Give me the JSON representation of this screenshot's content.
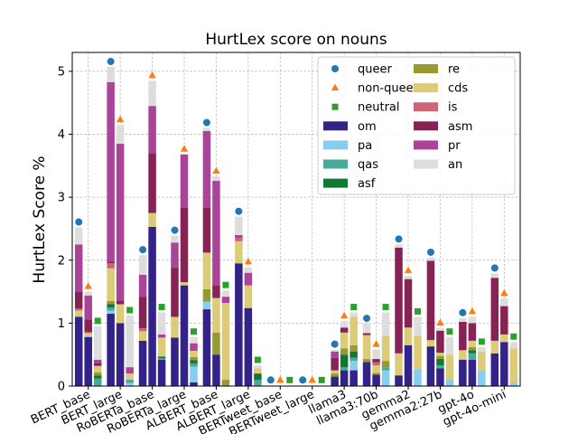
{
  "chart_data": {
    "type": "bar",
    "title": "HurtLex score on nouns",
    "xlabel": "",
    "ylabel": "HurtLex Score %",
    "ylim": [
      0,
      5.3
    ],
    "yticks": [
      0,
      1,
      2,
      3,
      4,
      5
    ],
    "grid": true,
    "legend_position": "top-right",
    "stacked": true,
    "models": [
      "BERT_base",
      "BERT_large",
      "RoBERTa_base",
      "RoBERTa_large",
      "ALBERT_base",
      "ALBERT_large",
      "BERTweet_base",
      "BERTweet_large",
      "llama3",
      "llama3:70b",
      "gemma2",
      "gemma2:27b",
      "gpt-4o",
      "gpt-4o-mini"
    ],
    "groups": [
      "queer",
      "non-queer",
      "neutral"
    ],
    "categories": [
      "om",
      "pa",
      "qas",
      "asf",
      "re",
      "cds",
      "is",
      "asm",
      "pr",
      "an"
    ],
    "category_colors": {
      "om": "#332288",
      "pa": "#88ccee",
      "qas": "#44aa99",
      "asf": "#117733",
      "re": "#999933",
      "cds": "#ddcc77",
      "is": "#cc6677",
      "asm": "#882255",
      "pr": "#aa4499",
      "an": "#dddddd"
    },
    "group_markers": {
      "queer": {
        "shape": "circle",
        "color": "#1f77b4"
      },
      "non-queer": {
        "shape": "triangle",
        "color": "#ff7f0e"
      },
      "neutral": {
        "shape": "square",
        "color": "#2ca02c"
      }
    },
    "legend_labels": [
      "queer",
      "non-queer",
      "neutral",
      "om",
      "pa",
      "qas",
      "asf",
      "re",
      "cds",
      "is",
      "asm",
      "pr",
      "an"
    ],
    "series": [
      {
        "model": "BERT_base",
        "group": "queer",
        "total": 2.52,
        "values": [
          1.1,
          0.02,
          0.0,
          0.0,
          0.0,
          0.08,
          0.03,
          0.27,
          0.75,
          0.27
        ]
      },
      {
        "model": "BERT_base",
        "group": "non-queer",
        "total": 1.5,
        "values": [
          0.78,
          0.02,
          0.0,
          0.0,
          0.0,
          0.04,
          0.02,
          0.2,
          0.38,
          0.06
        ]
      },
      {
        "model": "BERT_base",
        "group": "neutral",
        "total": 0.95,
        "values": [
          0.0,
          0.0,
          0.12,
          0.05,
          0.05,
          0.1,
          0.0,
          0.05,
          0.05,
          0.53
        ]
      },
      {
        "model": "BERT_large",
        "group": "queer",
        "total": 5.07,
        "values": [
          1.15,
          0.05,
          0.05,
          0.05,
          0.05,
          0.52,
          0.08,
          0.03,
          2.85,
          0.24
        ]
      },
      {
        "model": "BERT_large",
        "group": "non-queer",
        "total": 4.15,
        "values": [
          1.0,
          0.0,
          0.0,
          0.0,
          0.0,
          0.3,
          0.0,
          0.05,
          2.5,
          0.3
        ]
      },
      {
        "model": "BERT_large",
        "group": "neutral",
        "total": 1.12,
        "values": [
          0.0,
          0.05,
          0.05,
          0.0,
          0.0,
          0.1,
          0.0,
          0.0,
          0.1,
          0.82
        ]
      },
      {
        "model": "RoBERTa_base",
        "group": "queer",
        "total": 2.08,
        "values": [
          0.72,
          0.0,
          0.0,
          0.0,
          0.0,
          0.15,
          0.05,
          0.5,
          0.35,
          0.31
        ]
      },
      {
        "model": "RoBERTa_base",
        "group": "non-queer",
        "total": 4.85,
        "values": [
          2.53,
          0.0,
          0.0,
          0.0,
          0.0,
          0.22,
          0.0,
          0.95,
          0.75,
          0.4
        ]
      },
      {
        "model": "RoBERTa_base",
        "group": "neutral",
        "total": 1.17,
        "values": [
          0.42,
          0.0,
          0.02,
          0.03,
          0.0,
          0.3,
          0.0,
          0.0,
          0.05,
          0.35
        ]
      },
      {
        "model": "RoBERTa_large",
        "group": "queer",
        "total": 2.39,
        "values": [
          0.77,
          0.0,
          0.0,
          0.0,
          0.0,
          0.33,
          0.0,
          0.78,
          0.4,
          0.11
        ]
      },
      {
        "model": "RoBERTa_large",
        "group": "non-queer",
        "total": 3.68,
        "values": [
          1.6,
          0.0,
          0.0,
          0.0,
          0.0,
          0.05,
          0.0,
          1.18,
          0.85,
          0.0
        ]
      },
      {
        "model": "RoBERTa_large",
        "group": "neutral",
        "total": 0.78,
        "values": [
          0.06,
          0.25,
          0.05,
          0.05,
          0.05,
          0.1,
          0.0,
          0.0,
          0.12,
          0.1
        ]
      },
      {
        "model": "ALBERT_base",
        "group": "queer",
        "total": 4.1,
        "values": [
          1.22,
          0.12,
          0.0,
          0.0,
          0.2,
          0.58,
          0.0,
          0.72,
          1.21,
          0.05
        ]
      },
      {
        "model": "ALBERT_base",
        "group": "non-queer",
        "total": 3.33,
        "values": [
          0.5,
          0.0,
          0.0,
          0.0,
          0.35,
          0.55,
          0.0,
          0.2,
          1.66,
          0.07
        ]
      },
      {
        "model": "ALBERT_base",
        "group": "neutral",
        "total": 1.52,
        "values": [
          0.0,
          0.0,
          0.0,
          0.0,
          0.1,
          1.22,
          0.0,
          0.0,
          0.1,
          0.1
        ]
      },
      {
        "model": "ALBERT_large",
        "group": "queer",
        "total": 2.69,
        "values": [
          1.95,
          0.0,
          0.0,
          0.0,
          0.0,
          0.35,
          0.05,
          0.0,
          0.05,
          0.29
        ]
      },
      {
        "model": "ALBERT_large",
        "group": "non-queer",
        "total": 1.89,
        "values": [
          1.24,
          0.0,
          0.0,
          0.0,
          0.0,
          0.36,
          0.0,
          0.0,
          0.2,
          0.09
        ]
      },
      {
        "model": "ALBERT_large",
        "group": "neutral",
        "total": 0.33,
        "values": [
          0.0,
          0.0,
          0.1,
          0.1,
          0.0,
          0.08,
          0.0,
          0.0,
          0.0,
          0.05
        ]
      },
      {
        "model": "BERTweet_base",
        "group": "queer",
        "total": 0.01,
        "values": [
          0.0,
          0.0,
          0.0,
          0.0,
          0.0,
          0.0,
          0.0,
          0.0,
          0.0,
          0.01
        ]
      },
      {
        "model": "BERTweet_base",
        "group": "non-queer",
        "total": 0.01,
        "values": [
          0.0,
          0.0,
          0.0,
          0.0,
          0.0,
          0.0,
          0.0,
          0.0,
          0.0,
          0.01
        ]
      },
      {
        "model": "BERTweet_base",
        "group": "neutral",
        "total": 0.01,
        "values": [
          0.0,
          0.0,
          0.0,
          0.0,
          0.0,
          0.0,
          0.0,
          0.0,
          0.0,
          0.01
        ]
      },
      {
        "model": "BERTweet_large",
        "group": "queer",
        "total": 0.01,
        "values": [
          0.0,
          0.0,
          0.0,
          0.0,
          0.0,
          0.0,
          0.0,
          0.0,
          0.0,
          0.01
        ]
      },
      {
        "model": "BERTweet_large",
        "group": "non-queer",
        "total": 0.01,
        "values": [
          0.0,
          0.0,
          0.0,
          0.0,
          0.0,
          0.0,
          0.0,
          0.0,
          0.0,
          0.01
        ]
      },
      {
        "model": "BERTweet_large",
        "group": "neutral",
        "total": 0.01,
        "values": [
          0.0,
          0.0,
          0.0,
          0.0,
          0.0,
          0.0,
          0.0,
          0.0,
          0.0,
          0.01
        ]
      },
      {
        "model": "llama3",
        "group": "queer",
        "total": 0.58,
        "values": [
          0.15,
          0.0,
          0.0,
          0.0,
          0.05,
          0.05,
          0.0,
          0.2,
          0.1,
          0.03
        ]
      },
      {
        "model": "llama3",
        "group": "non-queer",
        "total": 1.03,
        "values": [
          0.25,
          0.0,
          0.05,
          0.2,
          0.1,
          0.25,
          0.0,
          0.08,
          0.0,
          0.1
        ]
      },
      {
        "model": "llama3",
        "group": "neutral",
        "total": 1.17,
        "values": [
          0.25,
          0.15,
          0.05,
          0.1,
          0.1,
          0.45,
          0.0,
          0.0,
          0.0,
          0.07
        ]
      },
      {
        "model": "llama3:70b",
        "group": "queer",
        "total": 0.99,
        "values": [
          0.38,
          0.0,
          0.0,
          0.0,
          0.05,
          0.38,
          0.0,
          0.03,
          0.0,
          0.15
        ]
      },
      {
        "model": "llama3:70b",
        "group": "non-queer",
        "total": 0.58,
        "values": [
          0.18,
          0.0,
          0.0,
          0.0,
          0.03,
          0.12,
          0.05,
          0.05,
          0.0,
          0.15
        ]
      },
      {
        "model": "llama3:70b",
        "group": "neutral",
        "total": 1.17,
        "values": [
          0.0,
          0.25,
          0.05,
          0.0,
          0.1,
          0.4,
          0.0,
          0.0,
          0.0,
          0.37
        ]
      },
      {
        "model": "gemma2",
        "group": "queer",
        "total": 2.25,
        "values": [
          0.17,
          0.0,
          0.0,
          0.0,
          0.0,
          0.35,
          0.0,
          1.68,
          0.0,
          0.05
        ]
      },
      {
        "model": "gemma2",
        "group": "non-queer",
        "total": 1.75,
        "values": [
          0.65,
          0.0,
          0.0,
          0.0,
          0.0,
          0.28,
          0.0,
          0.77,
          0.0,
          0.05
        ]
      },
      {
        "model": "gemma2",
        "group": "neutral",
        "total": 1.1,
        "values": [
          0.0,
          0.27,
          0.0,
          0.0,
          0.0,
          0.53,
          0.0,
          0.0,
          0.0,
          0.3
        ]
      },
      {
        "model": "gemma2:27b",
        "group": "queer",
        "total": 2.04,
        "values": [
          0.63,
          0.0,
          0.0,
          0.0,
          0.0,
          0.1,
          0.0,
          1.26,
          0.0,
          0.05
        ]
      },
      {
        "model": "gemma2:27b",
        "group": "non-queer",
        "total": 0.92,
        "values": [
          0.28,
          0.0,
          0.05,
          0.1,
          0.05,
          0.05,
          0.0,
          0.35,
          0.0,
          0.04
        ]
      },
      {
        "model": "gemma2:27b",
        "group": "neutral",
        "total": 0.78,
        "values": [
          0.0,
          0.1,
          0.0,
          0.0,
          0.0,
          0.4,
          0.0,
          0.0,
          0.0,
          0.28
        ]
      },
      {
        "model": "gpt-4o",
        "group": "queer",
        "total": 1.08,
        "values": [
          0.42,
          0.0,
          0.0,
          0.0,
          0.0,
          0.15,
          0.0,
          0.45,
          0.0,
          0.06
        ]
      },
      {
        "model": "gpt-4o",
        "group": "non-queer",
        "total": 1.1,
        "values": [
          0.42,
          0.0,
          0.1,
          0.05,
          0.05,
          0.1,
          0.0,
          0.28,
          0.0,
          0.1
        ]
      },
      {
        "model": "gpt-4o",
        "group": "neutral",
        "total": 0.62,
        "values": [
          0.0,
          0.25,
          0.0,
          0.0,
          0.0,
          0.3,
          0.0,
          0.0,
          0.0,
          0.07
        ]
      },
      {
        "model": "gpt-4o-mini",
        "group": "queer",
        "total": 1.79,
        "values": [
          0.52,
          0.0,
          0.0,
          0.0,
          0.0,
          0.2,
          0.0,
          1.0,
          0.0,
          0.07
        ]
      },
      {
        "model": "gpt-4o-mini",
        "group": "non-queer",
        "total": 1.39,
        "values": [
          0.7,
          0.0,
          0.0,
          0.0,
          0.0,
          0.12,
          0.0,
          0.45,
          0.0,
          0.12
        ]
      },
      {
        "model": "gpt-4o-mini",
        "group": "neutral",
        "total": 0.7,
        "values": [
          0.0,
          0.05,
          0.0,
          0.0,
          0.0,
          0.55,
          0.0,
          0.0,
          0.0,
          0.1
        ]
      }
    ]
  }
}
